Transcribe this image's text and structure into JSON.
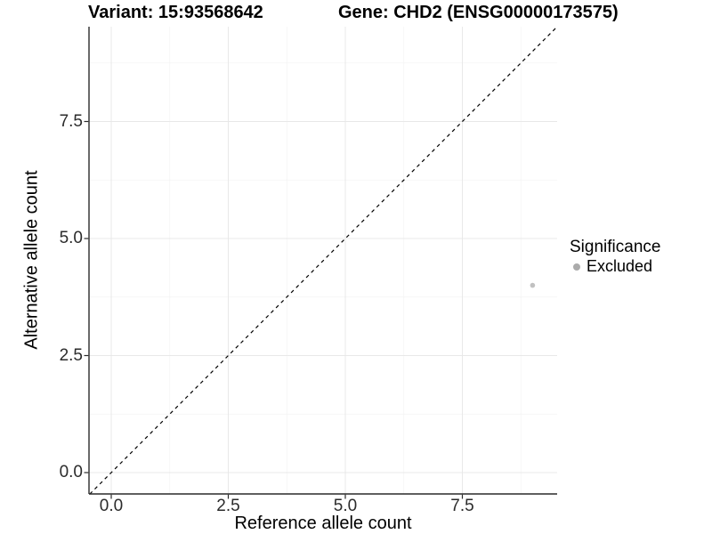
{
  "titles": {
    "variant": "Variant: 15:93568642",
    "gene": "Gene: CHD2 (ENSG00000173575)"
  },
  "chart_data": {
    "type": "scatter",
    "title_variant": "Variant: 15:93568642",
    "title_gene": "Gene: CHD2 (ENSG00000173575)",
    "xlabel": "Reference allele count",
    "ylabel": "Alternative allele count",
    "xlim": [
      -0.48,
      9.53
    ],
    "ylim": [
      -0.46,
      9.52
    ],
    "x_tick_labels": [
      "0.0",
      "2.5",
      "5.0",
      "7.5"
    ],
    "x_tick_values": [
      0,
      2.5,
      5,
      7.5
    ],
    "y_tick_labels": [
      "0.0",
      "2.5",
      "5.0",
      "7.5"
    ],
    "y_tick_values": [
      0,
      2.5,
      5,
      7.5
    ],
    "minor_tick_values": [
      1.25,
      3.75,
      6.25,
      8.75
    ],
    "grid": "major+minor",
    "points": [
      {
        "x": 9,
        "y": 4,
        "series": "Excluded",
        "color": "#c1c1c1",
        "radius": 2.8
      }
    ],
    "reference_line": {
      "slope": 1,
      "intercept": 0,
      "style": "dashed",
      "color": "#000000"
    },
    "legend": {
      "title": "Significance",
      "position": "right",
      "items": [
        {
          "label": "Excluded",
          "color": "#ababab"
        }
      ]
    }
  },
  "colors": {
    "background": "#ffffff",
    "grid_major": "#e8e8e8",
    "grid_minor": "#f3f3f3",
    "axis_line": "#2a2a2a",
    "tick_mark": "#2a2a2a",
    "tick_text": "#2b2b2b"
  }
}
